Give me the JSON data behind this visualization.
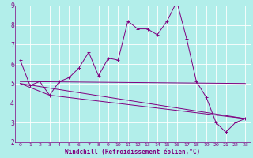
{
  "xlabel": "Windchill (Refroidissement éolien,°C)",
  "background_color": "#b2eeea",
  "grid_color": "#ffffff",
  "line_color": "#800080",
  "xlim": [
    -0.5,
    23.5
  ],
  "ylim": [
    2,
    9
  ],
  "xticks": [
    0,
    1,
    2,
    3,
    4,
    5,
    6,
    7,
    8,
    9,
    10,
    11,
    12,
    13,
    14,
    15,
    16,
    17,
    18,
    19,
    20,
    21,
    22,
    23
  ],
  "yticks": [
    2,
    3,
    4,
    5,
    6,
    7,
    8,
    9
  ],
  "line1_x": [
    0,
    1,
    2,
    3,
    4,
    5,
    6,
    7,
    8,
    9,
    10,
    11,
    12,
    13,
    14,
    15,
    16,
    17,
    18,
    19,
    20,
    21,
    22,
    23
  ],
  "line1_y": [
    6.2,
    4.9,
    5.1,
    4.4,
    5.1,
    5.3,
    5.8,
    6.6,
    5.4,
    6.3,
    6.2,
    8.2,
    7.8,
    7.8,
    7.5,
    8.2,
    9.2,
    7.3,
    5.1,
    4.3,
    3.0,
    2.5,
    3.0,
    3.2
  ],
  "line2_x": [
    0,
    23
  ],
  "line2_y": [
    5.1,
    5.0
  ],
  "line3_x": [
    0,
    3,
    23
  ],
  "line3_y": [
    5.0,
    4.4,
    3.2
  ],
  "line4_x": [
    0,
    23
  ],
  "line4_y": [
    5.0,
    3.2
  ],
  "tick_fontsize": 5,
  "xlabel_fontsize": 5.5,
  "marker_size": 2.5,
  "line_width": 0.7
}
